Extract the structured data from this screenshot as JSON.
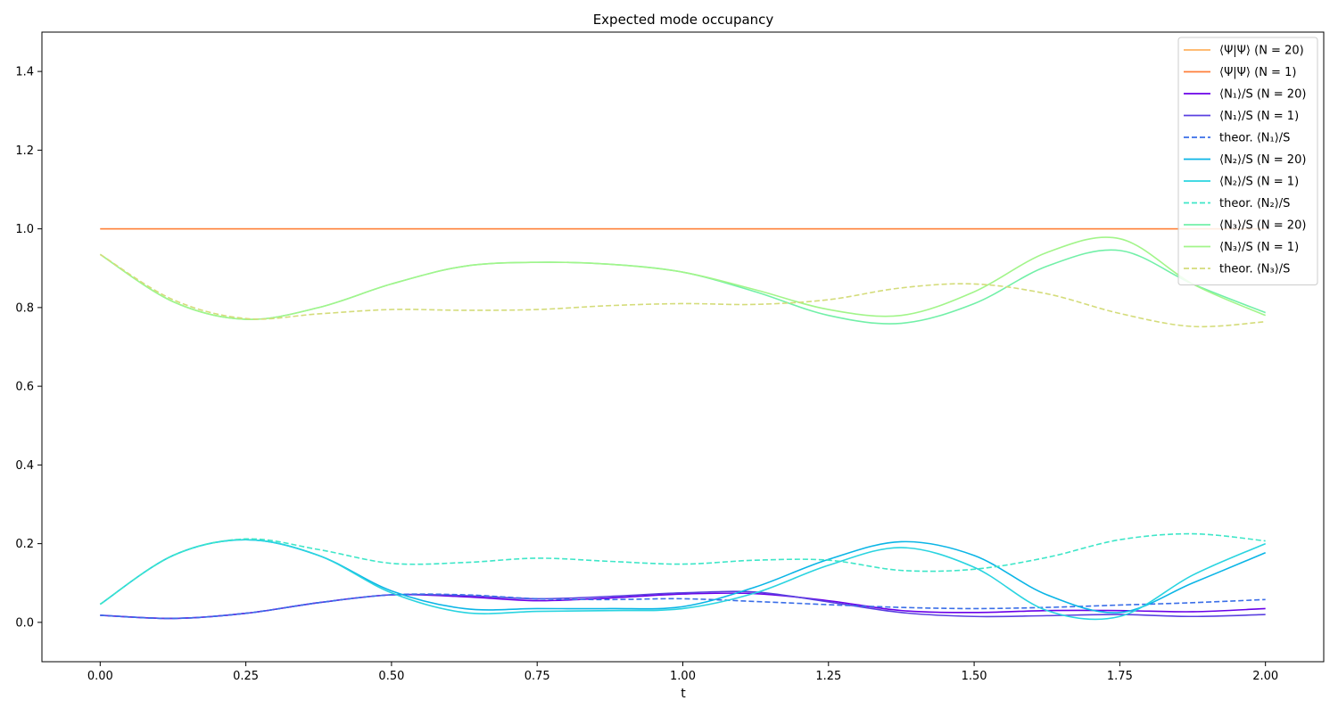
{
  "chart_data": {
    "type": "line",
    "title": "Expected mode occupancy",
    "xlabel": "t",
    "ylabel": "",
    "xlim": [
      -0.1,
      2.1
    ],
    "ylim": [
      -0.1,
      1.5
    ],
    "xticks": [
      0.0,
      0.25,
      0.5,
      0.75,
      1.0,
      1.25,
      1.5,
      1.75,
      2.0
    ],
    "xtick_labels": [
      "0.00",
      "0.25",
      "0.50",
      "0.75",
      "1.00",
      "1.25",
      "1.50",
      "1.75",
      "2.00"
    ],
    "yticks": [
      0.0,
      0.2,
      0.4,
      0.6,
      0.8,
      1.0,
      1.2,
      1.4
    ],
    "ytick_labels": [
      "0.0",
      "0.2",
      "0.4",
      "0.6",
      "0.8",
      "1.0",
      "1.2",
      "1.4"
    ],
    "grid": false,
    "legend_position": "top-right",
    "x": [
      0.0,
      0.125,
      0.25,
      0.375,
      0.5,
      0.625,
      0.75,
      0.875,
      1.0,
      1.125,
      1.25,
      1.375,
      1.5,
      1.625,
      1.75,
      1.875,
      2.0
    ],
    "series": [
      {
        "name": "⟨Ψ|Ψ⟩ (N = 20)",
        "color": "#ffb360",
        "dash": false,
        "values": [
          1,
          1,
          1,
          1,
          1,
          1,
          1,
          1,
          1,
          1,
          1,
          1,
          1,
          1,
          1,
          1,
          1
        ]
      },
      {
        "name": "⟨Ψ|Ψ⟩ (N = 1)",
        "color": "#ff7f3a",
        "dash": false,
        "values": [
          1,
          1,
          1,
          1,
          1,
          1,
          1,
          1,
          1,
          1,
          1,
          1,
          1,
          1,
          1,
          1,
          1
        ]
      },
      {
        "name": "⟨N₁⟩/S (N = 20)",
        "color": "#6a00e8",
        "dash": false,
        "values": [
          0.018,
          0.01,
          0.023,
          0.05,
          0.07,
          0.065,
          0.055,
          0.062,
          0.072,
          0.073,
          0.055,
          0.03,
          0.025,
          0.03,
          0.03,
          0.027,
          0.035
        ]
      },
      {
        "name": "⟨N₁⟩/S (N = 1)",
        "color": "#5a40e0",
        "dash": false,
        "values": [
          0.018,
          0.01,
          0.023,
          0.05,
          0.07,
          0.068,
          0.06,
          0.066,
          0.075,
          0.077,
          0.052,
          0.025,
          0.015,
          0.017,
          0.02,
          0.015,
          0.02
        ]
      },
      {
        "name": "theor. ⟨N₁⟩/S",
        "color": "#3a6ee8",
        "dash": true,
        "values": [
          0.018,
          0.01,
          0.023,
          0.05,
          0.07,
          0.07,
          0.06,
          0.058,
          0.06,
          0.053,
          0.045,
          0.038,
          0.035,
          0.038,
          0.044,
          0.05,
          0.058
        ]
      },
      {
        "name": "⟨N₂⟩/S (N = 20)",
        "color": "#0bb5e6",
        "dash": false,
        "values": [
          0.046,
          0.17,
          0.21,
          0.17,
          0.08,
          0.035,
          0.035,
          0.035,
          0.04,
          0.09,
          0.16,
          0.205,
          0.17,
          0.07,
          0.025,
          0.1,
          0.177
        ]
      },
      {
        "name": "⟨N₂⟩/S (N = 1)",
        "color": "#2ad4e0",
        "dash": false,
        "values": [
          0.046,
          0.17,
          0.21,
          0.17,
          0.075,
          0.025,
          0.028,
          0.03,
          0.035,
          0.075,
          0.145,
          0.19,
          0.14,
          0.03,
          0.015,
          0.12,
          0.2
        ]
      },
      {
        "name": "theor. ⟨N₂⟩/S",
        "color": "#3ee6c8",
        "dash": true,
        "values": [
          0.046,
          0.17,
          0.212,
          0.185,
          0.15,
          0.152,
          0.163,
          0.155,
          0.148,
          0.158,
          0.158,
          0.132,
          0.135,
          0.165,
          0.21,
          0.225,
          0.207
        ]
      },
      {
        "name": "⟨N₃⟩/S (N = 20)",
        "color": "#72f0a8",
        "dash": false,
        "values": [
          0.935,
          0.815,
          0.77,
          0.8,
          0.86,
          0.905,
          0.915,
          0.91,
          0.89,
          0.84,
          0.78,
          0.76,
          0.81,
          0.905,
          0.945,
          0.86,
          0.787
        ]
      },
      {
        "name": "⟨N₃⟩/S (N = 1)",
        "color": "#a2f58a",
        "dash": false,
        "values": [
          0.935,
          0.815,
          0.77,
          0.8,
          0.86,
          0.905,
          0.915,
          0.91,
          0.89,
          0.845,
          0.795,
          0.78,
          0.84,
          0.94,
          0.975,
          0.86,
          0.78
        ]
      },
      {
        "name": "theor. ⟨N₃⟩/S",
        "color": "#d4dc7a",
        "dash": true,
        "values": [
          0.935,
          0.82,
          0.772,
          0.784,
          0.795,
          0.793,
          0.795,
          0.805,
          0.81,
          0.808,
          0.82,
          0.85,
          0.86,
          0.835,
          0.785,
          0.752,
          0.764
        ]
      }
    ]
  }
}
